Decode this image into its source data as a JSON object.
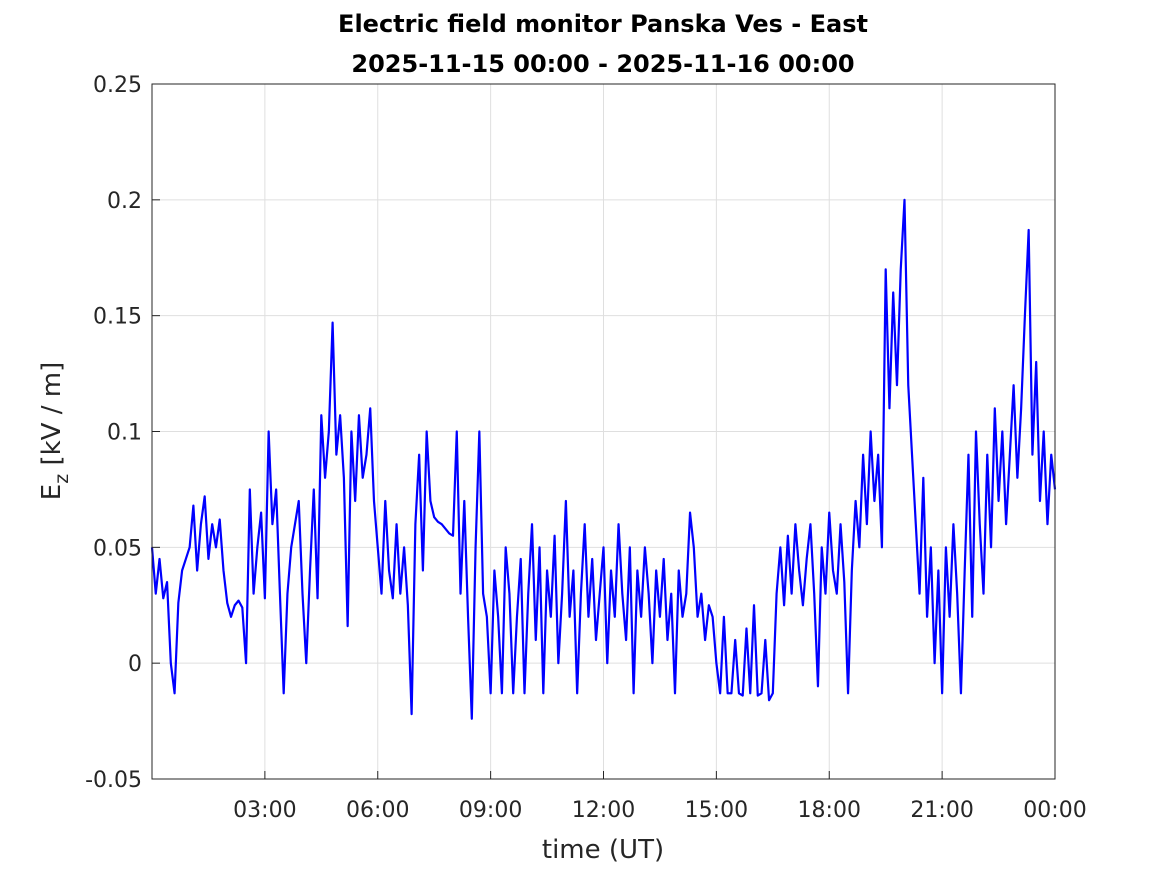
{
  "chart_data": {
    "type": "line",
    "title": "Electric field monitor Panska Ves - East",
    "subtitle": "2025-11-15 00:00 - 2025-11-16 00:00",
    "xlabel": "time (UT)",
    "ylabel": [
      "E",
      "z",
      " [kV / m]"
    ],
    "grid": true,
    "xlim": [
      0,
      24
    ],
    "xticks": [
      {
        "value": 3,
        "label": "03:00"
      },
      {
        "value": 6,
        "label": "06:00"
      },
      {
        "value": 9,
        "label": "09:00"
      },
      {
        "value": 12,
        "label": "12:00"
      },
      {
        "value": 15,
        "label": "15:00"
      },
      {
        "value": 18,
        "label": "18:00"
      },
      {
        "value": 21,
        "label": "21:00"
      },
      {
        "value": 24,
        "label": "00:00"
      }
    ],
    "ylim": [
      -0.05,
      0.25
    ],
    "yticks": [
      -0.05,
      0,
      0.05,
      0.1,
      0.15,
      0.2,
      0.25
    ],
    "x": [
      0,
      0.1,
      0.2,
      0.3,
      0.4,
      0.5,
      0.6,
      0.7,
      0.8,
      0.9,
      1,
      1.1,
      1.2,
      1.3,
      1.4,
      1.5,
      1.6,
      1.7,
      1.8,
      1.9,
      2,
      2.1,
      2.2,
      2.3,
      2.4,
      2.5,
      2.6,
      2.7,
      2.8,
      2.9,
      3,
      3.1,
      3.2,
      3.3,
      3.4,
      3.5,
      3.6,
      3.7,
      3.8,
      3.9,
      4,
      4.1,
      4.2,
      4.3,
      4.4,
      4.5,
      4.6,
      4.7,
      4.8,
      4.9,
      5,
      5.1,
      5.2,
      5.3,
      5.4,
      5.5,
      5.6,
      5.7,
      5.8,
      5.9,
      6,
      6.1,
      6.2,
      6.3,
      6.4,
      6.5,
      6.6,
      6.7,
      6.8,
      6.9,
      7,
      7.1,
      7.2,
      7.3,
      7.4,
      7.5,
      7.6,
      7.7,
      7.8,
      7.9,
      8,
      8.1,
      8.2,
      8.3,
      8.4,
      8.5,
      8.6,
      8.7,
      8.8,
      8.9,
      9,
      9.1,
      9.2,
      9.3,
      9.4,
      9.5,
      9.6,
      9.7,
      9.8,
      9.9,
      10,
      10.1,
      10.2,
      10.3,
      10.4,
      10.5,
      10.6,
      10.7,
      10.8,
      10.9,
      11,
      11.1,
      11.2,
      11.3,
      11.4,
      11.5,
      11.6,
      11.7,
      11.8,
      11.9,
      12,
      12.1,
      12.2,
      12.3,
      12.4,
      12.5,
      12.6,
      12.7,
      12.8,
      12.9,
      13,
      13.1,
      13.2,
      13.3,
      13.4,
      13.5,
      13.6,
      13.7,
      13.8,
      13.9,
      14,
      14.1,
      14.2,
      14.3,
      14.4,
      14.5,
      14.6,
      14.7,
      14.8,
      14.9,
      15,
      15.1,
      15.2,
      15.3,
      15.4,
      15.5,
      15.6,
      15.7,
      15.8,
      15.9,
      16,
      16.1,
      16.2,
      16.3,
      16.4,
      16.5,
      16.6,
      16.7,
      16.8,
      16.9,
      17,
      17.1,
      17.2,
      17.3,
      17.4,
      17.5,
      17.6,
      17.7,
      17.8,
      17.9,
      18,
      18.1,
      18.2,
      18.3,
      18.4,
      18.5,
      18.6,
      18.7,
      18.8,
      18.9,
      19,
      19.1,
      19.2,
      19.3,
      19.4,
      19.5,
      19.6,
      19.7,
      19.8,
      19.9,
      20,
      20.1,
      20.2,
      20.3,
      20.4,
      20.5,
      20.6,
      20.7,
      20.8,
      20.9,
      21,
      21.1,
      21.2,
      21.3,
      21.4,
      21.5,
      21.6,
      21.7,
      21.8,
      21.9,
      22,
      22.1,
      22.2,
      22.3,
      22.4,
      22.5,
      22.6,
      22.7,
      22.8,
      22.9,
      23,
      23.1,
      23.2,
      23.3,
      23.4,
      23.5,
      23.6,
      23.7,
      23.8,
      23.9,
      24
    ],
    "series": [
      {
        "color": "#0000ff",
        "values": [
          0.05,
          0.03,
          0.045,
          0.028,
          0.035,
          0.0,
          -0.013,
          0.026,
          0.04,
          0.045,
          0.05,
          0.068,
          0.04,
          0.06,
          0.072,
          0.045,
          0.06,
          0.05,
          0.062,
          0.04,
          0.026,
          0.02,
          0.025,
          0.027,
          0.024,
          0.0,
          0.075,
          0.03,
          0.05,
          0.065,
          0.028,
          0.1,
          0.06,
          0.075,
          0.03,
          -0.013,
          0.03,
          0.05,
          0.06,
          0.07,
          0.03,
          0.0,
          0.04,
          0.075,
          0.028,
          0.107,
          0.08,
          0.1,
          0.147,
          0.09,
          0.107,
          0.08,
          0.016,
          0.1,
          0.07,
          0.107,
          0.08,
          0.09,
          0.11,
          0.07,
          0.05,
          0.03,
          0.07,
          0.04,
          0.028,
          0.06,
          0.03,
          0.05,
          0.025,
          -0.022,
          0.06,
          0.09,
          0.04,
          0.1,
          0.07,
          0.063,
          0.061,
          0.06,
          0.058,
          0.056,
          0.055,
          0.1,
          0.03,
          0.07,
          0.02,
          -0.024,
          0.05,
          0.1,
          0.03,
          0.02,
          -0.013,
          0.04,
          0.02,
          -0.013,
          0.05,
          0.03,
          -0.013,
          0.02,
          0.045,
          -0.013,
          0.03,
          0.06,
          0.01,
          0.05,
          -0.013,
          0.04,
          0.02,
          0.055,
          0.0,
          0.03,
          0.07,
          0.02,
          0.04,
          -0.013,
          0.03,
          0.06,
          0.02,
          0.045,
          0.01,
          0.03,
          0.05,
          0.0,
          0.04,
          0.02,
          0.06,
          0.03,
          0.01,
          0.05,
          -0.013,
          0.04,
          0.02,
          0.05,
          0.03,
          0.0,
          0.04,
          0.02,
          0.045,
          0.01,
          0.03,
          -0.013,
          0.04,
          0.02,
          0.03,
          0.065,
          0.05,
          0.02,
          0.03,
          0.01,
          0.025,
          0.02,
          0.0,
          -0.013,
          0.02,
          -0.013,
          -0.013,
          0.01,
          -0.013,
          -0.014,
          0.015,
          -0.013,
          0.025,
          -0.014,
          -0.013,
          0.01,
          -0.016,
          -0.013,
          0.03,
          0.05,
          0.025,
          0.055,
          0.03,
          0.06,
          0.04,
          0.025,
          0.045,
          0.06,
          0.03,
          -0.01,
          0.05,
          0.03,
          0.065,
          0.04,
          0.03,
          0.06,
          0.035,
          -0.013,
          0.04,
          0.07,
          0.05,
          0.09,
          0.06,
          0.1,
          0.07,
          0.09,
          0.05,
          0.17,
          0.11,
          0.16,
          0.12,
          0.17,
          0.2,
          0.12,
          0.09,
          0.06,
          0.03,
          0.08,
          0.02,
          0.05,
          0.0,
          0.04,
          -0.013,
          0.05,
          0.02,
          0.06,
          0.03,
          -0.013,
          0.04,
          0.09,
          0.02,
          0.1,
          0.06,
          0.03,
          0.09,
          0.05,
          0.11,
          0.07,
          0.1,
          0.06,
          0.09,
          0.12,
          0.08,
          0.11,
          0.15,
          0.187,
          0.09,
          0.13,
          0.07,
          0.1,
          0.06,
          0.09,
          0.075
        ]
      }
    ]
  }
}
